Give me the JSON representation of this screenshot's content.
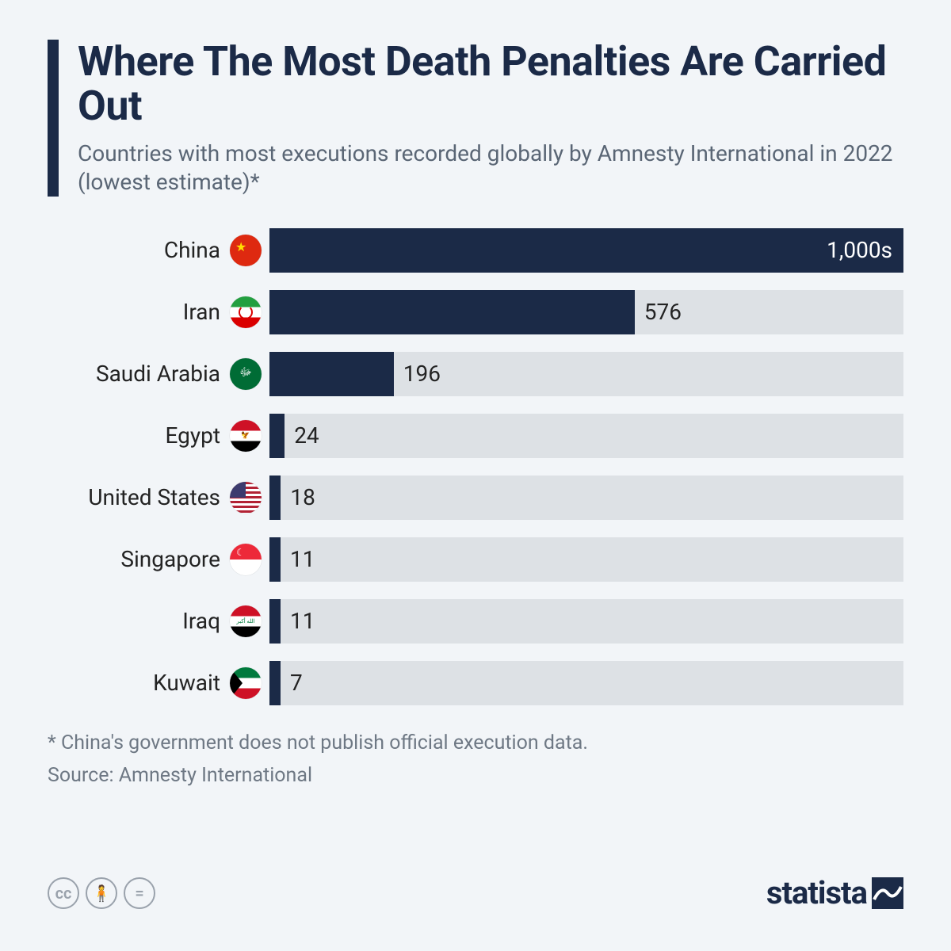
{
  "title": "Where The Most Death Penalties Are Carried Out",
  "subtitle": "Countries with most executions recorded globally by Amnesty International in 2022 (lowest estimate)*",
  "chart": {
    "type": "bar",
    "bar_color": "#1b2a47",
    "track_color": "#dde1e5",
    "background_color": "#f2f5f8",
    "label_fontsize": 28,
    "value_fontsize": 28,
    "max_value": 1000,
    "rows": [
      {
        "country": "China",
        "flag": "cn",
        "value": 1000,
        "display": "1,000s",
        "label_inside": true
      },
      {
        "country": "Iran",
        "flag": "ir",
        "value": 576,
        "display": "576",
        "label_inside": false
      },
      {
        "country": "Saudi Arabia",
        "flag": "sa",
        "value": 196,
        "display": "196",
        "label_inside": false
      },
      {
        "country": "Egypt",
        "flag": "eg",
        "value": 24,
        "display": "24",
        "label_inside": false
      },
      {
        "country": "United States",
        "flag": "us",
        "value": 18,
        "display": "18",
        "label_inside": false
      },
      {
        "country": "Singapore",
        "flag": "sg",
        "value": 11,
        "display": "11",
        "label_inside": false
      },
      {
        "country": "Iraq",
        "flag": "iq",
        "value": 11,
        "display": "11",
        "label_inside": false
      },
      {
        "country": "Kuwait",
        "flag": "kw",
        "value": 7,
        "display": "7",
        "label_inside": false
      }
    ]
  },
  "footnote1": "* China's government does not publish official execution data.",
  "footnote2": "Source: Amnesty International",
  "brand": "statista",
  "cc": {
    "a": "cc",
    "b": "🧍",
    "c": "="
  }
}
